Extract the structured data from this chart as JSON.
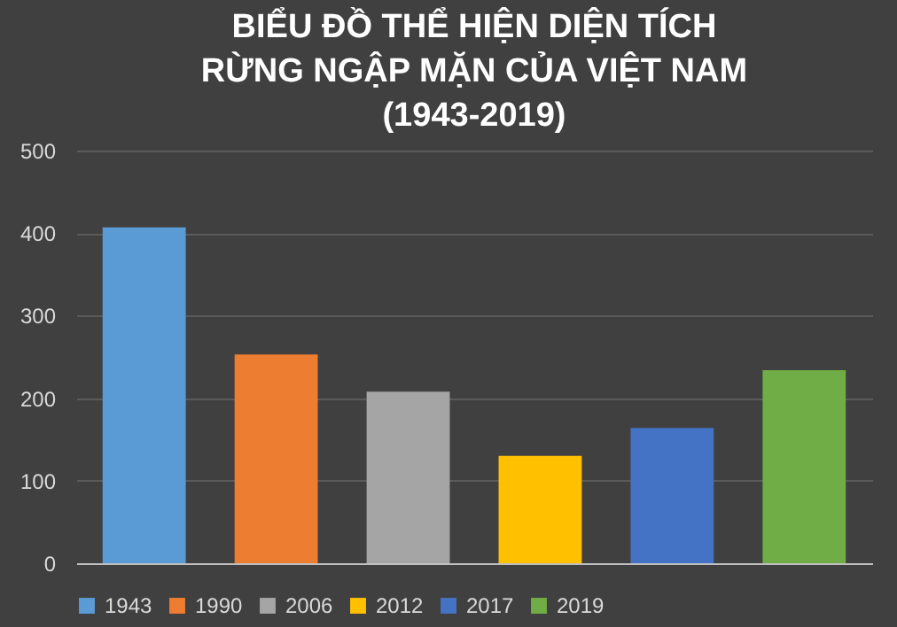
{
  "chart_data": {
    "type": "bar",
    "title": "BIỂU ĐỒ THỂ HIỆN DIỆN TÍCH\nRỪNG NGẬP MẶN CỦA VIỆT NAM\n(1943-2019)",
    "categories": [
      null
    ],
    "series": [
      {
        "name": "1943",
        "color": "#5b9bd5",
        "values": [
          407
        ]
      },
      {
        "name": "1990",
        "color": "#ed7d31",
        "values": [
          253
        ]
      },
      {
        "name": "2006",
        "color": "#a5a5a5",
        "values": [
          208
        ]
      },
      {
        "name": "2012",
        "color": "#ffc000",
        "values": [
          130
        ]
      },
      {
        "name": "2017",
        "color": "#4472c4",
        "values": [
          164
        ]
      },
      {
        "name": "2019",
        "color": "#70ad47",
        "values": [
          234
        ]
      }
    ],
    "ylim": [
      0,
      500
    ],
    "yticks": [
      0,
      100,
      200,
      300,
      400,
      500
    ],
    "grid": "y",
    "legend": "bottom",
    "tick_labels": "y"
  }
}
